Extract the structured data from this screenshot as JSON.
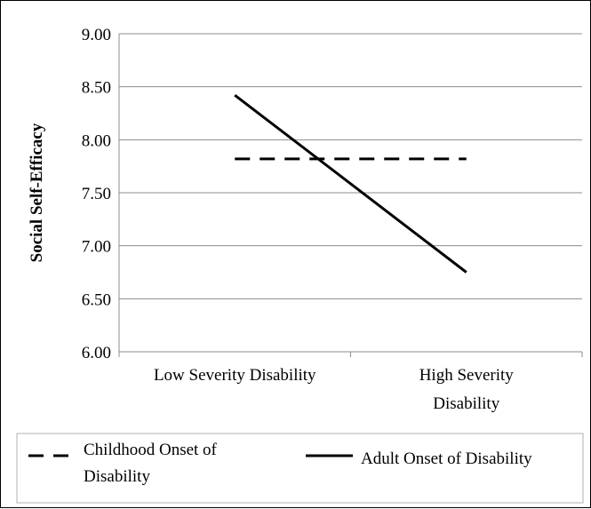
{
  "chart_data": {
    "type": "line",
    "title": "",
    "xlabel": "",
    "ylabel": "Social Self-Efficacy",
    "ylim": [
      6.0,
      9.0
    ],
    "y_ticks": [
      "6.00",
      "6.50",
      "7.00",
      "7.50",
      "8.00",
      "8.50",
      "9.00"
    ],
    "y_tick_values": [
      6.0,
      6.5,
      7.0,
      7.5,
      8.0,
      8.5,
      9.0
    ],
    "categories": [
      {
        "line1": "Low Severity Disability",
        "line2": ""
      },
      {
        "line1": "High Severity",
        "line2": "Disability"
      }
    ],
    "grid": true,
    "legend_position": "bottom",
    "series": [
      {
        "name_line1": "Childhood Onset of",
        "name_line2": "Disability",
        "style": "dashed",
        "color": "#000000",
        "values": [
          7.82,
          7.82
        ]
      },
      {
        "name_line1": "Adult Onset of Disability",
        "name_line2": "",
        "style": "solid",
        "color": "#000000",
        "values": [
          8.42,
          6.75
        ]
      }
    ]
  }
}
